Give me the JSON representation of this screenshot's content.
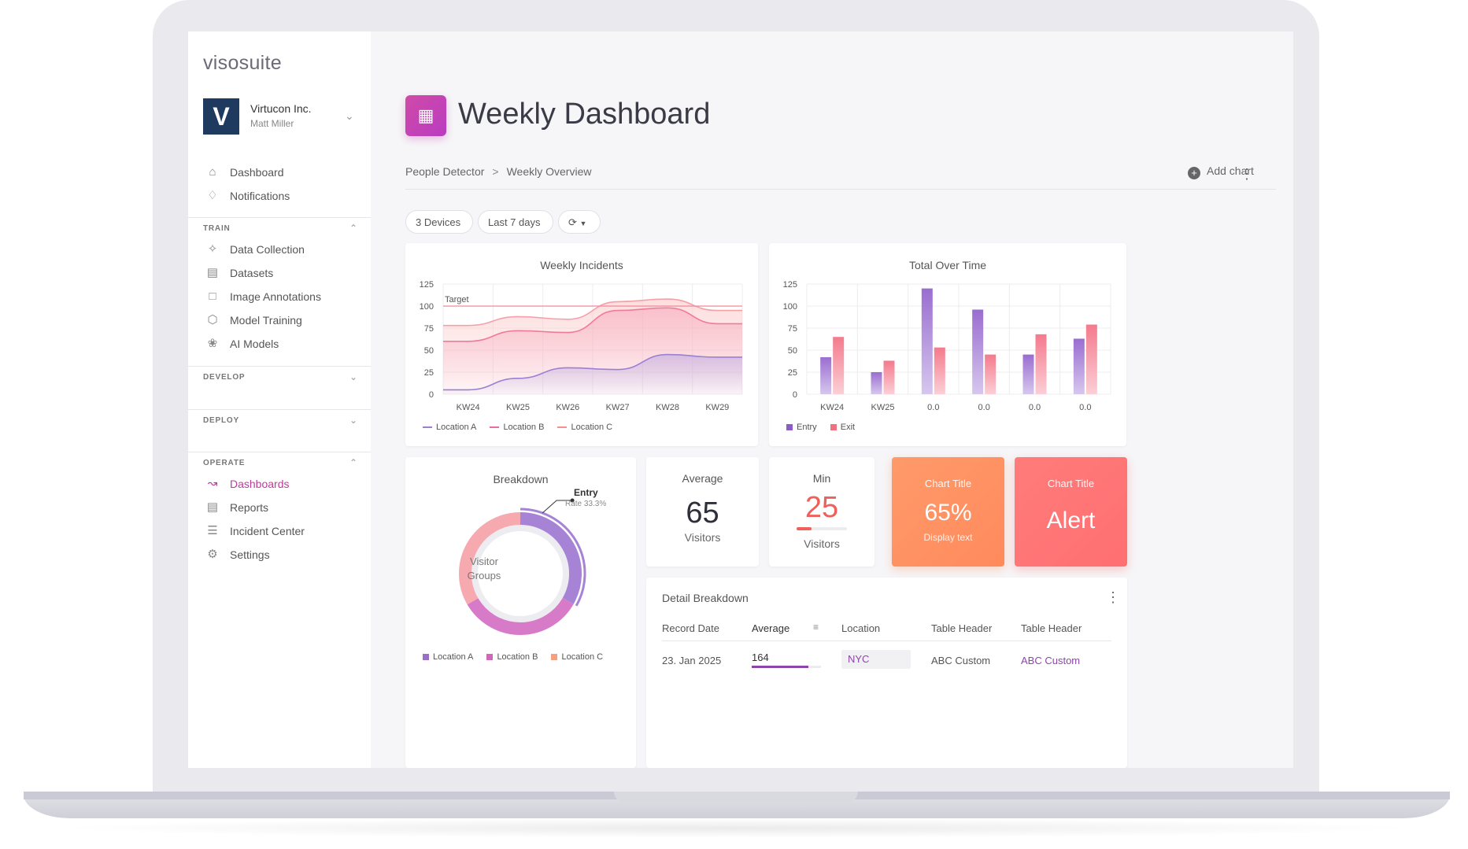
{
  "app": {
    "brand": "visosuite"
  },
  "org": {
    "logo_letter": "V",
    "name": "Virtucon Inc.",
    "user": "Matt Miller"
  },
  "nav": {
    "top": [
      {
        "label": "Dashboard",
        "icon": "home-icon"
      },
      {
        "label": "Notifications",
        "icon": "bell-icon"
      }
    ],
    "sections": {
      "train": {
        "title": "TRAIN",
        "items": [
          "Data Collection",
          "Datasets",
          "Image Annotations",
          "Model Training",
          "AI Models"
        ]
      },
      "develop": {
        "title": "DEVELOP"
      },
      "deploy": {
        "title": "DEPLOY"
      },
      "operate": {
        "title": "OPERATE",
        "items": [
          "Dashboards",
          "Reports",
          "Incident Center",
          "Settings"
        ]
      }
    }
  },
  "header": {
    "title": "Weekly Dashboard",
    "breadcrumb": [
      "People Detector",
      "Weekly Overview"
    ],
    "add_chart": "Add chart"
  },
  "filters": {
    "devices": "3 Devices",
    "range": "Last 7 days"
  },
  "colors": {
    "accent": "#c1399b",
    "purple": "#9b7fd4",
    "pink": "#f59aa8",
    "orange": "#ff9966",
    "red": "#ff7777"
  },
  "chart_data": [
    {
      "type": "area",
      "title": "Weekly Incidents",
      "categories": [
        "KW24",
        "KW25",
        "KW26",
        "KW27",
        "KW28",
        "KW29"
      ],
      "yticks": [
        0,
        25,
        50,
        75,
        100,
        125
      ],
      "ylim": [
        0,
        125
      ],
      "target": {
        "label": "Target",
        "value": 100
      },
      "series": [
        {
          "name": "Location A",
          "values": [
            5,
            18,
            30,
            28,
            45,
            42
          ]
        },
        {
          "name": "Location B",
          "values": [
            60,
            72,
            70,
            95,
            98,
            80
          ]
        },
        {
          "name": "Location C",
          "values": [
            78,
            88,
            85,
            105,
            108,
            95
          ]
        }
      ],
      "legend": "bottom-left"
    },
    {
      "type": "bar",
      "title": "Total Over Time",
      "categories": [
        "KW24",
        "KW25",
        "0.0",
        "0.0",
        "0.0",
        "0.0"
      ],
      "yticks": [
        0,
        25,
        50,
        75,
        100,
        125
      ],
      "ylim": [
        0,
        125
      ],
      "series": [
        {
          "name": "Entry",
          "values": [
            42,
            25,
            120,
            96,
            45,
            63
          ]
        },
        {
          "name": "Exit",
          "values": [
            65,
            38,
            53,
            45,
            68,
            79
          ]
        }
      ],
      "legend": "bottom-left"
    },
    {
      "type": "pie",
      "title": "Breakdown",
      "center_text": [
        "Visitor",
        "Groups"
      ],
      "annotation": {
        "label": "Entry",
        "sub": "Rate 33.3%"
      },
      "series": [
        {
          "name": "Location A",
          "value": 33.3
        },
        {
          "name": "Location B",
          "value": 33.3
        },
        {
          "name": "Location C",
          "value": 33.4
        }
      ]
    }
  ],
  "stats": {
    "average": {
      "label": "Average",
      "value": "65",
      "unit": "Visitors"
    },
    "min": {
      "label": "Min",
      "value": "25",
      "unit": "Visitors",
      "progress": 0.3
    },
    "kpi1": {
      "title": "Chart Title",
      "value": "65%",
      "sub": "Display text"
    },
    "kpi2": {
      "title": "Chart Title",
      "value": "Alert"
    }
  },
  "table": {
    "title": "Detail Breakdown",
    "headers": [
      "Record Date",
      "Average",
      "Location",
      "Table Header",
      "Table Header"
    ],
    "rows": [
      {
        "date": "23. Jan 2025",
        "average": "164",
        "avg_fraction": 0.82,
        "location": "NYC",
        "c4": "ABC Custom",
        "c5": "ABC Custom"
      }
    ]
  }
}
